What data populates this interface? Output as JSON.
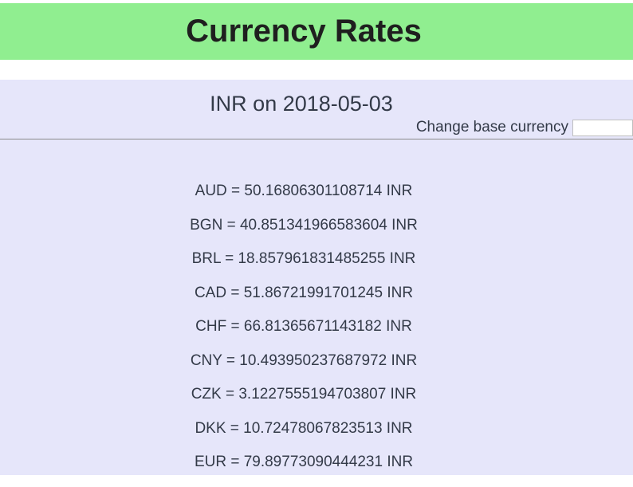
{
  "header": {
    "title": "Currency Rates"
  },
  "panel": {
    "base_title": "INR on 2018-05-03",
    "change_label": "Change base currency",
    "base_input_value": ""
  },
  "rates": [
    "AUD = 50.16806301108714 INR",
    "BGN = 40.851341966583604 INR",
    "BRL = 18.857961831485255 INR",
    "CAD = 51.86721991701245 INR",
    "CHF = 66.81365671143182 INR",
    "CNY = 10.493950237687972 INR",
    "CZK = 3.1227555194703807 INR",
    "DKK = 10.72478067823513 INR",
    "EUR = 79.89773090444231 INR"
  ],
  "colors": {
    "header_bg": "#90ee90",
    "panel_bg": "#e6e6fa",
    "text": "#333a48"
  }
}
